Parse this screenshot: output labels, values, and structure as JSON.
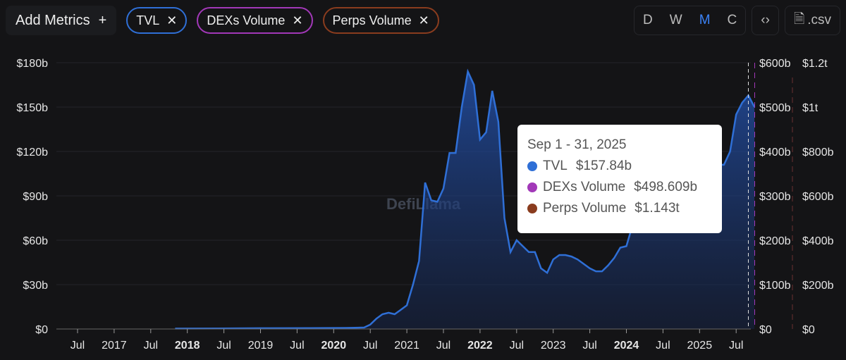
{
  "toolbar": {
    "add_metrics": "Add Metrics",
    "add_icon": "plus-icon",
    "metrics": [
      {
        "label": "TVL",
        "color": "#2f6fd6"
      },
      {
        "label": "DEXs Volume",
        "color": "#a238b8"
      },
      {
        "label": "Perps Volume",
        "color": "#8a3c1e"
      }
    ],
    "intervals": [
      "D",
      "W",
      "M",
      "C"
    ],
    "active_interval": "M",
    "embed_icon": "code-icon",
    "csv_label": ".csv",
    "csv_icon": "file-download-icon"
  },
  "watermark": "DefiLlama",
  "tooltip": {
    "date": "Sep 1 - 31, 2025",
    "rows": [
      {
        "label": "TVL",
        "value": "$157.84b",
        "color": "#2f6fd6"
      },
      {
        "label": "DEXs Volume",
        "value": "$498.609b",
        "color": "#a238b8"
      },
      {
        "label": "Perps Volume",
        "value": "$1.143t",
        "color": "#8a3c1e"
      }
    ]
  },
  "chart_data": {
    "type": "area",
    "y_left": {
      "ticks": [
        "$0",
        "$30b",
        "$60b",
        "$90b",
        "$120b",
        "$150b",
        "$180b"
      ],
      "range": [
        0,
        180
      ]
    },
    "y_right1": {
      "ticks": [
        "$0",
        "$100b",
        "$200b",
        "$300b",
        "$400b",
        "$500b",
        "$600b"
      ],
      "range": [
        0,
        600
      ]
    },
    "y_right2": {
      "ticks": [
        "$0",
        "$200b",
        "$400b",
        "$600b",
        "$800b",
        "$1t",
        "$1.2t"
      ],
      "range": [
        0,
        1200
      ]
    },
    "x_ticks": [
      {
        "label": "Jul",
        "date": "2016-07"
      },
      {
        "label": "2017",
        "date": "2017-01"
      },
      {
        "label": "Jul",
        "date": "2017-07"
      },
      {
        "label": "2018",
        "date": "2018-01",
        "bold": true
      },
      {
        "label": "Jul",
        "date": "2018-07"
      },
      {
        "label": "2019",
        "date": "2019-01"
      },
      {
        "label": "Jul",
        "date": "2019-07"
      },
      {
        "label": "2020",
        "date": "2020-01",
        "bold": true
      },
      {
        "label": "Jul",
        "date": "2020-07"
      },
      {
        "label": "2021",
        "date": "2021-01"
      },
      {
        "label": "Jul",
        "date": "2021-07"
      },
      {
        "label": "2022",
        "date": "2022-01",
        "bold": true
      },
      {
        "label": "Jul",
        "date": "2022-07"
      },
      {
        "label": "2023",
        "date": "2023-01"
      },
      {
        "label": "Jul",
        "date": "2023-07"
      },
      {
        "label": "2024",
        "date": "2024-01",
        "bold": true
      },
      {
        "label": "Jul",
        "date": "2024-07"
      },
      {
        "label": "2025",
        "date": "2025-01"
      },
      {
        "label": "Jul",
        "date": "2025-07"
      }
    ],
    "grid": true,
    "series": [
      {
        "name": "TVL",
        "color": "#2f6fd6",
        "points": [
          [
            "2017-11",
            0.3
          ],
          [
            "2018-06",
            0.4
          ],
          [
            "2019-01",
            0.5
          ],
          [
            "2019-09",
            0.6
          ],
          [
            "2020-03",
            0.7
          ],
          [
            "2020-06",
            1
          ],
          [
            "2020-07",
            3
          ],
          [
            "2020-08",
            7
          ],
          [
            "2020-09",
            10
          ],
          [
            "2020-10",
            11
          ],
          [
            "2020-11",
            10
          ],
          [
            "2020-12",
            13
          ],
          [
            "2021-01",
            16
          ],
          [
            "2021-02",
            30
          ],
          [
            "2021-03",
            46
          ],
          [
            "2021-04",
            99
          ],
          [
            "2021-05",
            87
          ],
          [
            "2021-06",
            86
          ],
          [
            "2021-07",
            95
          ],
          [
            "2021-08",
            119
          ],
          [
            "2021-09",
            119
          ],
          [
            "2021-10",
            150
          ],
          [
            "2021-11",
            174
          ],
          [
            "2021-12",
            165
          ],
          [
            "2022-01",
            128
          ],
          [
            "2022-02",
            133
          ],
          [
            "2022-03",
            161
          ],
          [
            "2022-04",
            140
          ],
          [
            "2022-05",
            75
          ],
          [
            "2022-06",
            52
          ],
          [
            "2022-07",
            60
          ],
          [
            "2022-08",
            56
          ],
          [
            "2022-09",
            52
          ],
          [
            "2022-10",
            52
          ],
          [
            "2022-11",
            41
          ],
          [
            "2022-12",
            38
          ],
          [
            "2023-01",
            47
          ],
          [
            "2023-02",
            50
          ],
          [
            "2023-03",
            50
          ],
          [
            "2023-04",
            49
          ],
          [
            "2023-05",
            47
          ],
          [
            "2023-06",
            44
          ],
          [
            "2023-07",
            41
          ],
          [
            "2023-08",
            39
          ],
          [
            "2023-09",
            39
          ],
          [
            "2023-10",
            43
          ],
          [
            "2023-11",
            48
          ],
          [
            "2023-12",
            55
          ],
          [
            "2024-01",
            56
          ],
          [
            "2024-02",
            70
          ],
          [
            "2024-03",
            95
          ],
          [
            "2024-04",
            90
          ],
          [
            "2024-05",
            95
          ],
          [
            "2024-06",
            92
          ],
          [
            "2024-07",
            90
          ],
          [
            "2024-08",
            85
          ],
          [
            "2024-09",
            90
          ],
          [
            "2024-10",
            95
          ],
          [
            "2024-11",
            120
          ],
          [
            "2024-12",
            130
          ],
          [
            "2025-01",
            125
          ],
          [
            "2025-02",
            105
          ],
          [
            "2025-03",
            100
          ],
          [
            "2025-04",
            111
          ],
          [
            "2025-05",
            111
          ],
          [
            "2025-06",
            120
          ],
          [
            "2025-07",
            145
          ],
          [
            "2025-08",
            153
          ],
          [
            "2025-09",
            157.84
          ],
          [
            "2025-10",
            150
          ]
        ]
      }
    ],
    "hover_date": "2025-09"
  }
}
